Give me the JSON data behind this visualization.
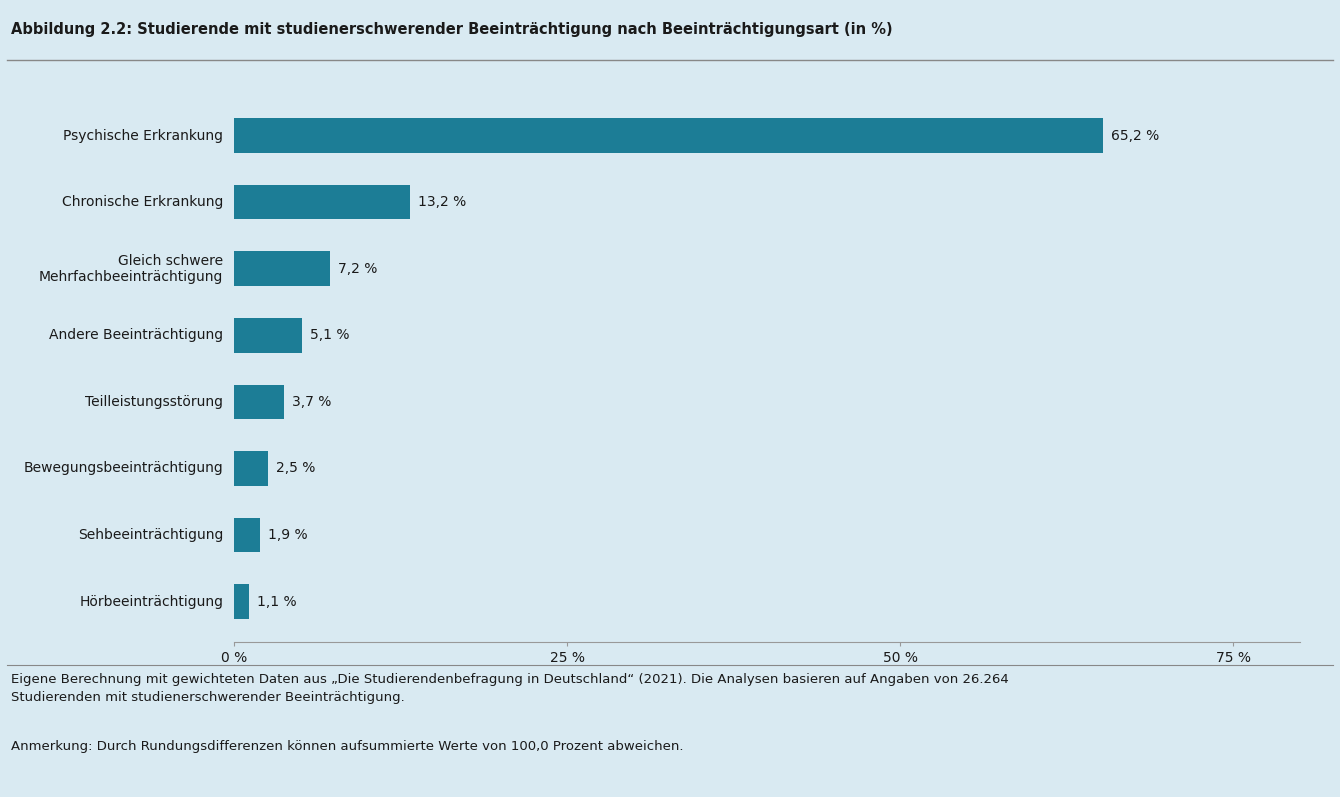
{
  "title": "Abbildung 2.2: Studierende mit studienerschwerender Beeinträchtigung nach Beeinträchtigungsart (in %)",
  "categories": [
    "Psychische Erkrankung",
    "Chronische Erkrankung",
    "Gleich schwere\nMehrfachbeeinträchtigung",
    "Andere Beeinträchtigung",
    "Teilleistungsstörung",
    "Bewegungsbeeinträchtigung",
    "Sehbeeinträchtigung",
    "Hörbeeinträchtigung"
  ],
  "values": [
    65.2,
    13.2,
    7.2,
    5.1,
    3.7,
    2.5,
    1.9,
    1.1
  ],
  "labels": [
    "65,2 %",
    "13,2 %",
    "7,2 %",
    "5,1 %",
    "3,7 %",
    "2,5 %",
    "1,9 %",
    "1,1 %"
  ],
  "bar_color": "#1c7d96",
  "background_color": "#d9eaf2",
  "text_color": "#1a1a1a",
  "footnote_line1": "Eigene Berechnung mit gewichteten Daten aus „Die Studierendenbefragung in Deutschland“ (2021). Die Analysen basieren auf Angaben von 26.264",
  "footnote_line2": "Studierenden mit studienerschwerender Beeinträchtigung.",
  "footnote_line3": "Anmerkung: Durch Rundungsdifferenzen können aufsummierte Werte von 100,0 Prozent abweichen.",
  "xlim": [
    0,
    80
  ],
  "xticks": [
    0,
    25,
    50,
    75
  ],
  "xticklabels": [
    "0 %",
    "25 %",
    "50 %",
    "75 %"
  ],
  "title_fontsize": 10.5,
  "label_fontsize": 10,
  "tick_fontsize": 10,
  "footnote_fontsize": 9.5,
  "bar_height": 0.52
}
